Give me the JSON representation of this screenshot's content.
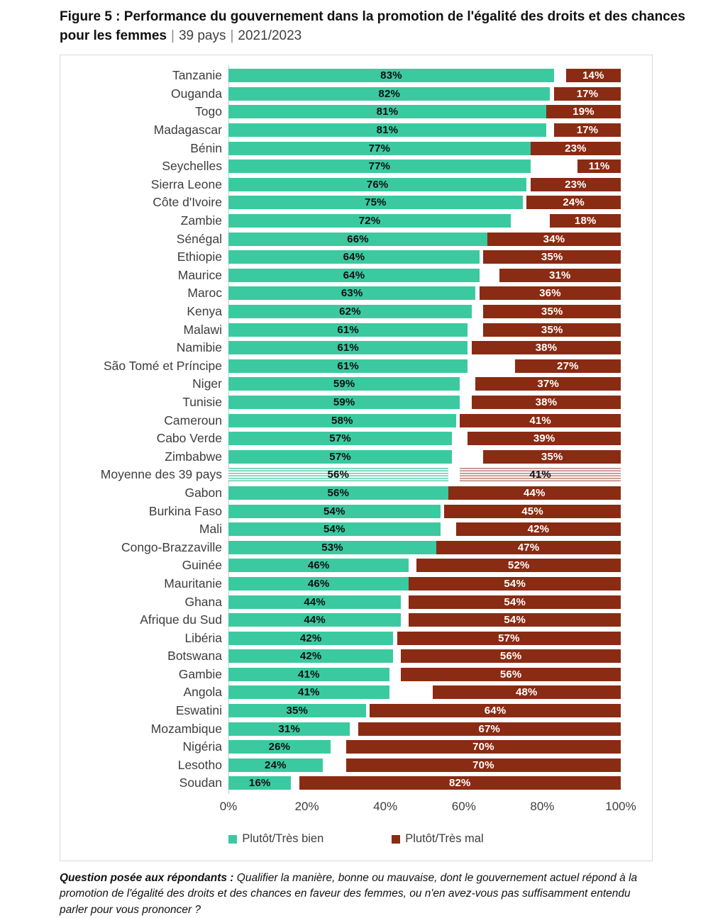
{
  "title": {
    "main": "Figure 5 : Performance du gouvernement dans la promotion de l'égalité des droits et des chances pour les femmes",
    "sep1": "|",
    "countries": "39 pays",
    "sep2": "|",
    "period": "2021/2023"
  },
  "colors": {
    "bien": "#3BC9A0",
    "mal": "#8A2B13",
    "panel_border": "#D8D8D8",
    "axis_text": "#3d3d3d"
  },
  "chart_data": {
    "type": "bar",
    "orientation": "horizontal-diverging",
    "title": "Performance du gouvernement dans la promotion de l'égalité des droits et des chances pour les femmes",
    "subtitle": "39 pays | 2021/2023",
    "xlim": [
      0,
      100
    ],
    "xticks": [
      "0%",
      "20%",
      "40%",
      "60%",
      "80%",
      "100%"
    ],
    "grid": false,
    "legend_position": "bottom",
    "series": [
      {
        "name": "Plutôt/Très bien",
        "color": "#3BC9A0",
        "anchor": "left"
      },
      {
        "name": "Plutôt/Très mal",
        "color": "#8A2B13",
        "anchor": "right"
      }
    ],
    "rows": [
      {
        "country": "Tanzanie",
        "bien": 83,
        "mal": 14,
        "average": false
      },
      {
        "country": "Ouganda",
        "bien": 82,
        "mal": 17,
        "average": false
      },
      {
        "country": "Togo",
        "bien": 81,
        "mal": 19,
        "average": false
      },
      {
        "country": "Madagascar",
        "bien": 81,
        "mal": 17,
        "average": false
      },
      {
        "country": "Bénin",
        "bien": 77,
        "mal": 23,
        "average": false
      },
      {
        "country": "Seychelles",
        "bien": 77,
        "mal": 11,
        "average": false
      },
      {
        "country": "Sierra Leone",
        "bien": 76,
        "mal": 23,
        "average": false
      },
      {
        "country": "Côte d'Ivoire",
        "bien": 75,
        "mal": 24,
        "average": false
      },
      {
        "country": "Zambie",
        "bien": 72,
        "mal": 18,
        "average": false
      },
      {
        "country": "Sénégal",
        "bien": 66,
        "mal": 34,
        "average": false
      },
      {
        "country": "Ethiopie",
        "bien": 64,
        "mal": 35,
        "average": false
      },
      {
        "country": "Maurice",
        "bien": 64,
        "mal": 31,
        "average": false
      },
      {
        "country": "Maroc",
        "bien": 63,
        "mal": 36,
        "average": false
      },
      {
        "country": "Kenya",
        "bien": 62,
        "mal": 35,
        "average": false
      },
      {
        "country": "Malawi",
        "bien": 61,
        "mal": 35,
        "average": false
      },
      {
        "country": "Namibie",
        "bien": 61,
        "mal": 38,
        "average": false
      },
      {
        "country": "São Tomé et Príncipe",
        "bien": 61,
        "mal": 27,
        "average": false
      },
      {
        "country": "Niger",
        "bien": 59,
        "mal": 37,
        "average": false
      },
      {
        "country": "Tunisie",
        "bien": 59,
        "mal": 38,
        "average": false
      },
      {
        "country": "Cameroun",
        "bien": 58,
        "mal": 41,
        "average": false
      },
      {
        "country": "Cabo Verde",
        "bien": 57,
        "mal": 39,
        "average": false
      },
      {
        "country": "Zimbabwe",
        "bien": 57,
        "mal": 35,
        "average": false
      },
      {
        "country": "Moyenne des 39 pays",
        "bien": 56,
        "mal": 41,
        "average": true
      },
      {
        "country": "Gabon",
        "bien": 56,
        "mal": 44,
        "average": false
      },
      {
        "country": "Burkina Faso",
        "bien": 54,
        "mal": 45,
        "average": false
      },
      {
        "country": "Mali",
        "bien": 54,
        "mal": 42,
        "average": false
      },
      {
        "country": "Congo-Brazzaville",
        "bien": 53,
        "mal": 47,
        "average": false
      },
      {
        "country": "Guinée",
        "bien": 46,
        "mal": 52,
        "average": false
      },
      {
        "country": "Mauritanie",
        "bien": 46,
        "mal": 54,
        "average": false
      },
      {
        "country": "Ghana",
        "bien": 44,
        "mal": 54,
        "average": false
      },
      {
        "country": "Afrique du Sud",
        "bien": 44,
        "mal": 54,
        "average": false
      },
      {
        "country": "Libéria",
        "bien": 42,
        "mal": 57,
        "average": false
      },
      {
        "country": "Botswana",
        "bien": 42,
        "mal": 56,
        "average": false
      },
      {
        "country": "Gambie",
        "bien": 41,
        "mal": 56,
        "average": false
      },
      {
        "country": "Angola",
        "bien": 41,
        "mal": 48,
        "average": false
      },
      {
        "country": "Eswatini",
        "bien": 35,
        "mal": 64,
        "average": false
      },
      {
        "country": "Mozambique",
        "bien": 31,
        "mal": 67,
        "average": false
      },
      {
        "country": "Nigéria",
        "bien": 26,
        "mal": 70,
        "average": false
      },
      {
        "country": "Lesotho",
        "bien": 24,
        "mal": 70,
        "average": false
      },
      {
        "country": "Soudan",
        "bien": 16,
        "mal": 82,
        "average": false
      }
    ]
  },
  "footer": {
    "lead": "Question posée aux répondants :",
    "text": " Qualifier la manière, bonne ou mauvaise, dont le gouvernement actuel répond à la promotion de l'égalité des droits et des chances en faveur des femmes, ou n'en avez-vous pas suffisamment entendu parler pour vous prononcer ?"
  }
}
